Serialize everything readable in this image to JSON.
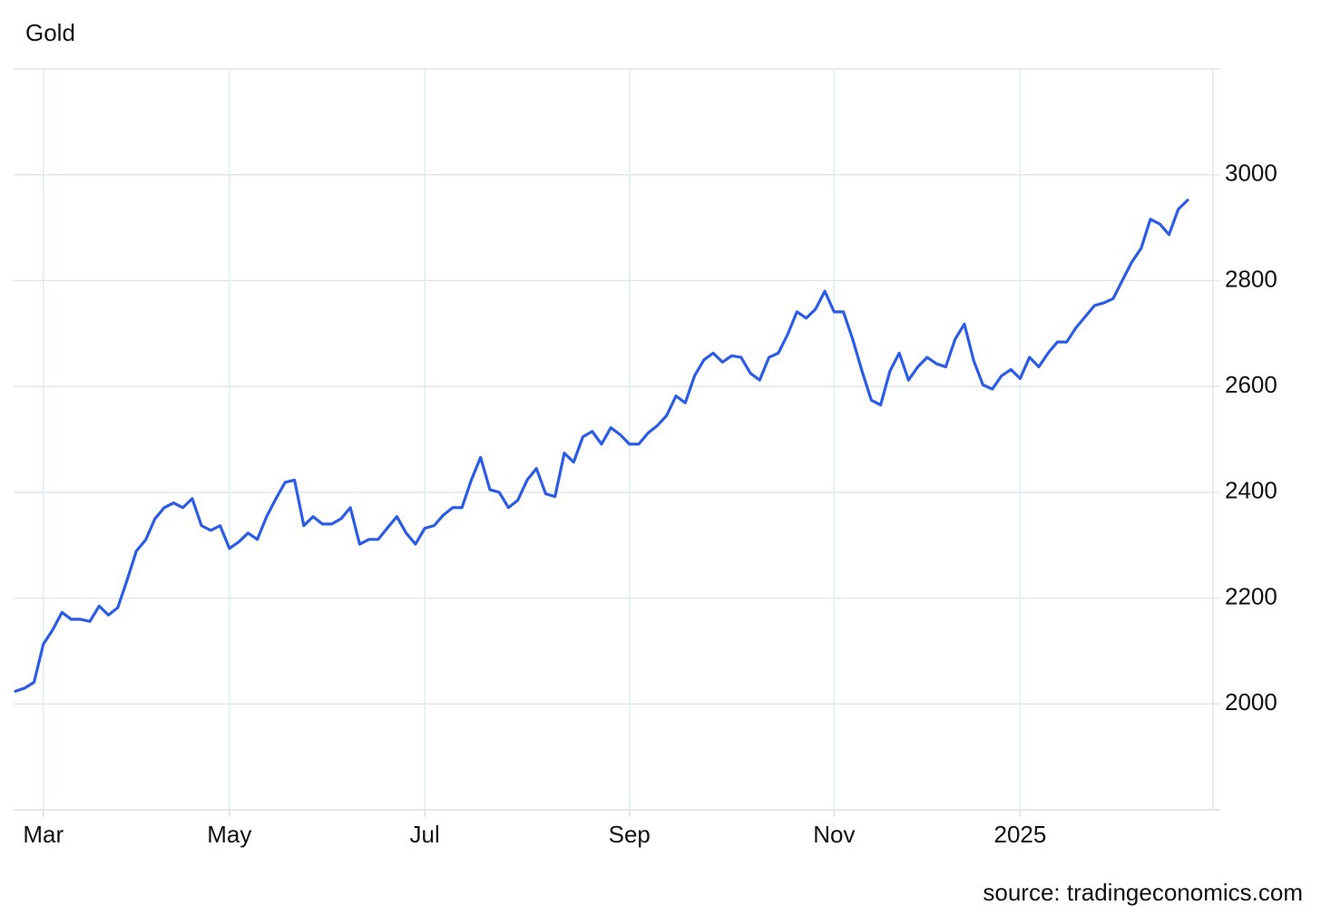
{
  "chart_data": {
    "type": "line",
    "title": "Gold",
    "source": "source: tradingeconomics.com",
    "categories": [
      null,
      null,
      null,
      "Mar",
      null,
      null,
      null,
      null,
      null,
      null,
      null,
      null,
      null,
      null,
      null,
      null,
      null,
      null,
      null,
      null,
      null,
      null,
      null,
      "May",
      null,
      null,
      null,
      null,
      null,
      null,
      null,
      null,
      null,
      null,
      null,
      null,
      null,
      null,
      null,
      null,
      null,
      null,
      null,
      null,
      "Jul",
      null,
      null,
      null,
      null,
      null,
      null,
      null,
      null,
      null,
      null,
      null,
      null,
      null,
      null,
      null,
      null,
      null,
      null,
      null,
      null,
      null,
      "Sep",
      null,
      null,
      null,
      null,
      null,
      null,
      null,
      null,
      null,
      null,
      null,
      null,
      null,
      null,
      null,
      null,
      null,
      null,
      null,
      null,
      null,
      "Nov",
      null,
      null,
      null,
      null,
      null,
      null,
      null,
      null,
      null,
      null,
      null,
      null,
      null,
      null,
      null,
      null,
      null,
      null,
      null,
      "2025",
      null,
      null,
      null,
      null,
      null,
      null,
      null,
      null,
      null,
      null,
      null,
      null,
      null,
      null,
      null,
      null,
      null,
      null
    ],
    "values": [
      2024,
      2030,
      2041,
      2113,
      2140,
      2173,
      2160,
      2160,
      2156,
      2185,
      2168,
      2182,
      2234,
      2289,
      2310,
      2350,
      2371,
      2380,
      2371,
      2388,
      2337,
      2328,
      2337,
      2294,
      2306,
      2323,
      2311,
      2354,
      2388,
      2419,
      2423,
      2337,
      2354,
      2340,
      2340,
      2350,
      2371,
      2302,
      2311,
      2311,
      2333,
      2354,
      2323,
      2302,
      2332,
      2337,
      2357,
      2371,
      2371,
      2423,
      2466,
      2405,
      2400,
      2371,
      2385,
      2423,
      2445,
      2397,
      2392,
      2474,
      2457,
      2505,
      2515,
      2491,
      2522,
      2509,
      2491,
      2491,
      2512,
      2526,
      2545,
      2582,
      2569,
      2620,
      2650,
      2663,
      2646,
      2658,
      2655,
      2625,
      2612,
      2655,
      2663,
      2698,
      2741,
      2729,
      2746,
      2780,
      2741,
      2741,
      2689,
      2629,
      2574,
      2565,
      2629,
      2663,
      2612,
      2637,
      2655,
      2643,
      2637,
      2689,
      2718,
      2649,
      2603,
      2595,
      2620,
      2632,
      2615,
      2655,
      2637,
      2663,
      2684,
      2684,
      2711,
      2732,
      2753,
      2758,
      2766,
      2801,
      2835,
      2861,
      2916,
      2907,
      2887,
      2935,
      2952
    ],
    "color": "#2b5ce6",
    "ylim": [
      1800,
      3200
    ],
    "yticks": [
      2000,
      2200,
      2400,
      2600,
      2800,
      3000
    ],
    "grid": true
  }
}
